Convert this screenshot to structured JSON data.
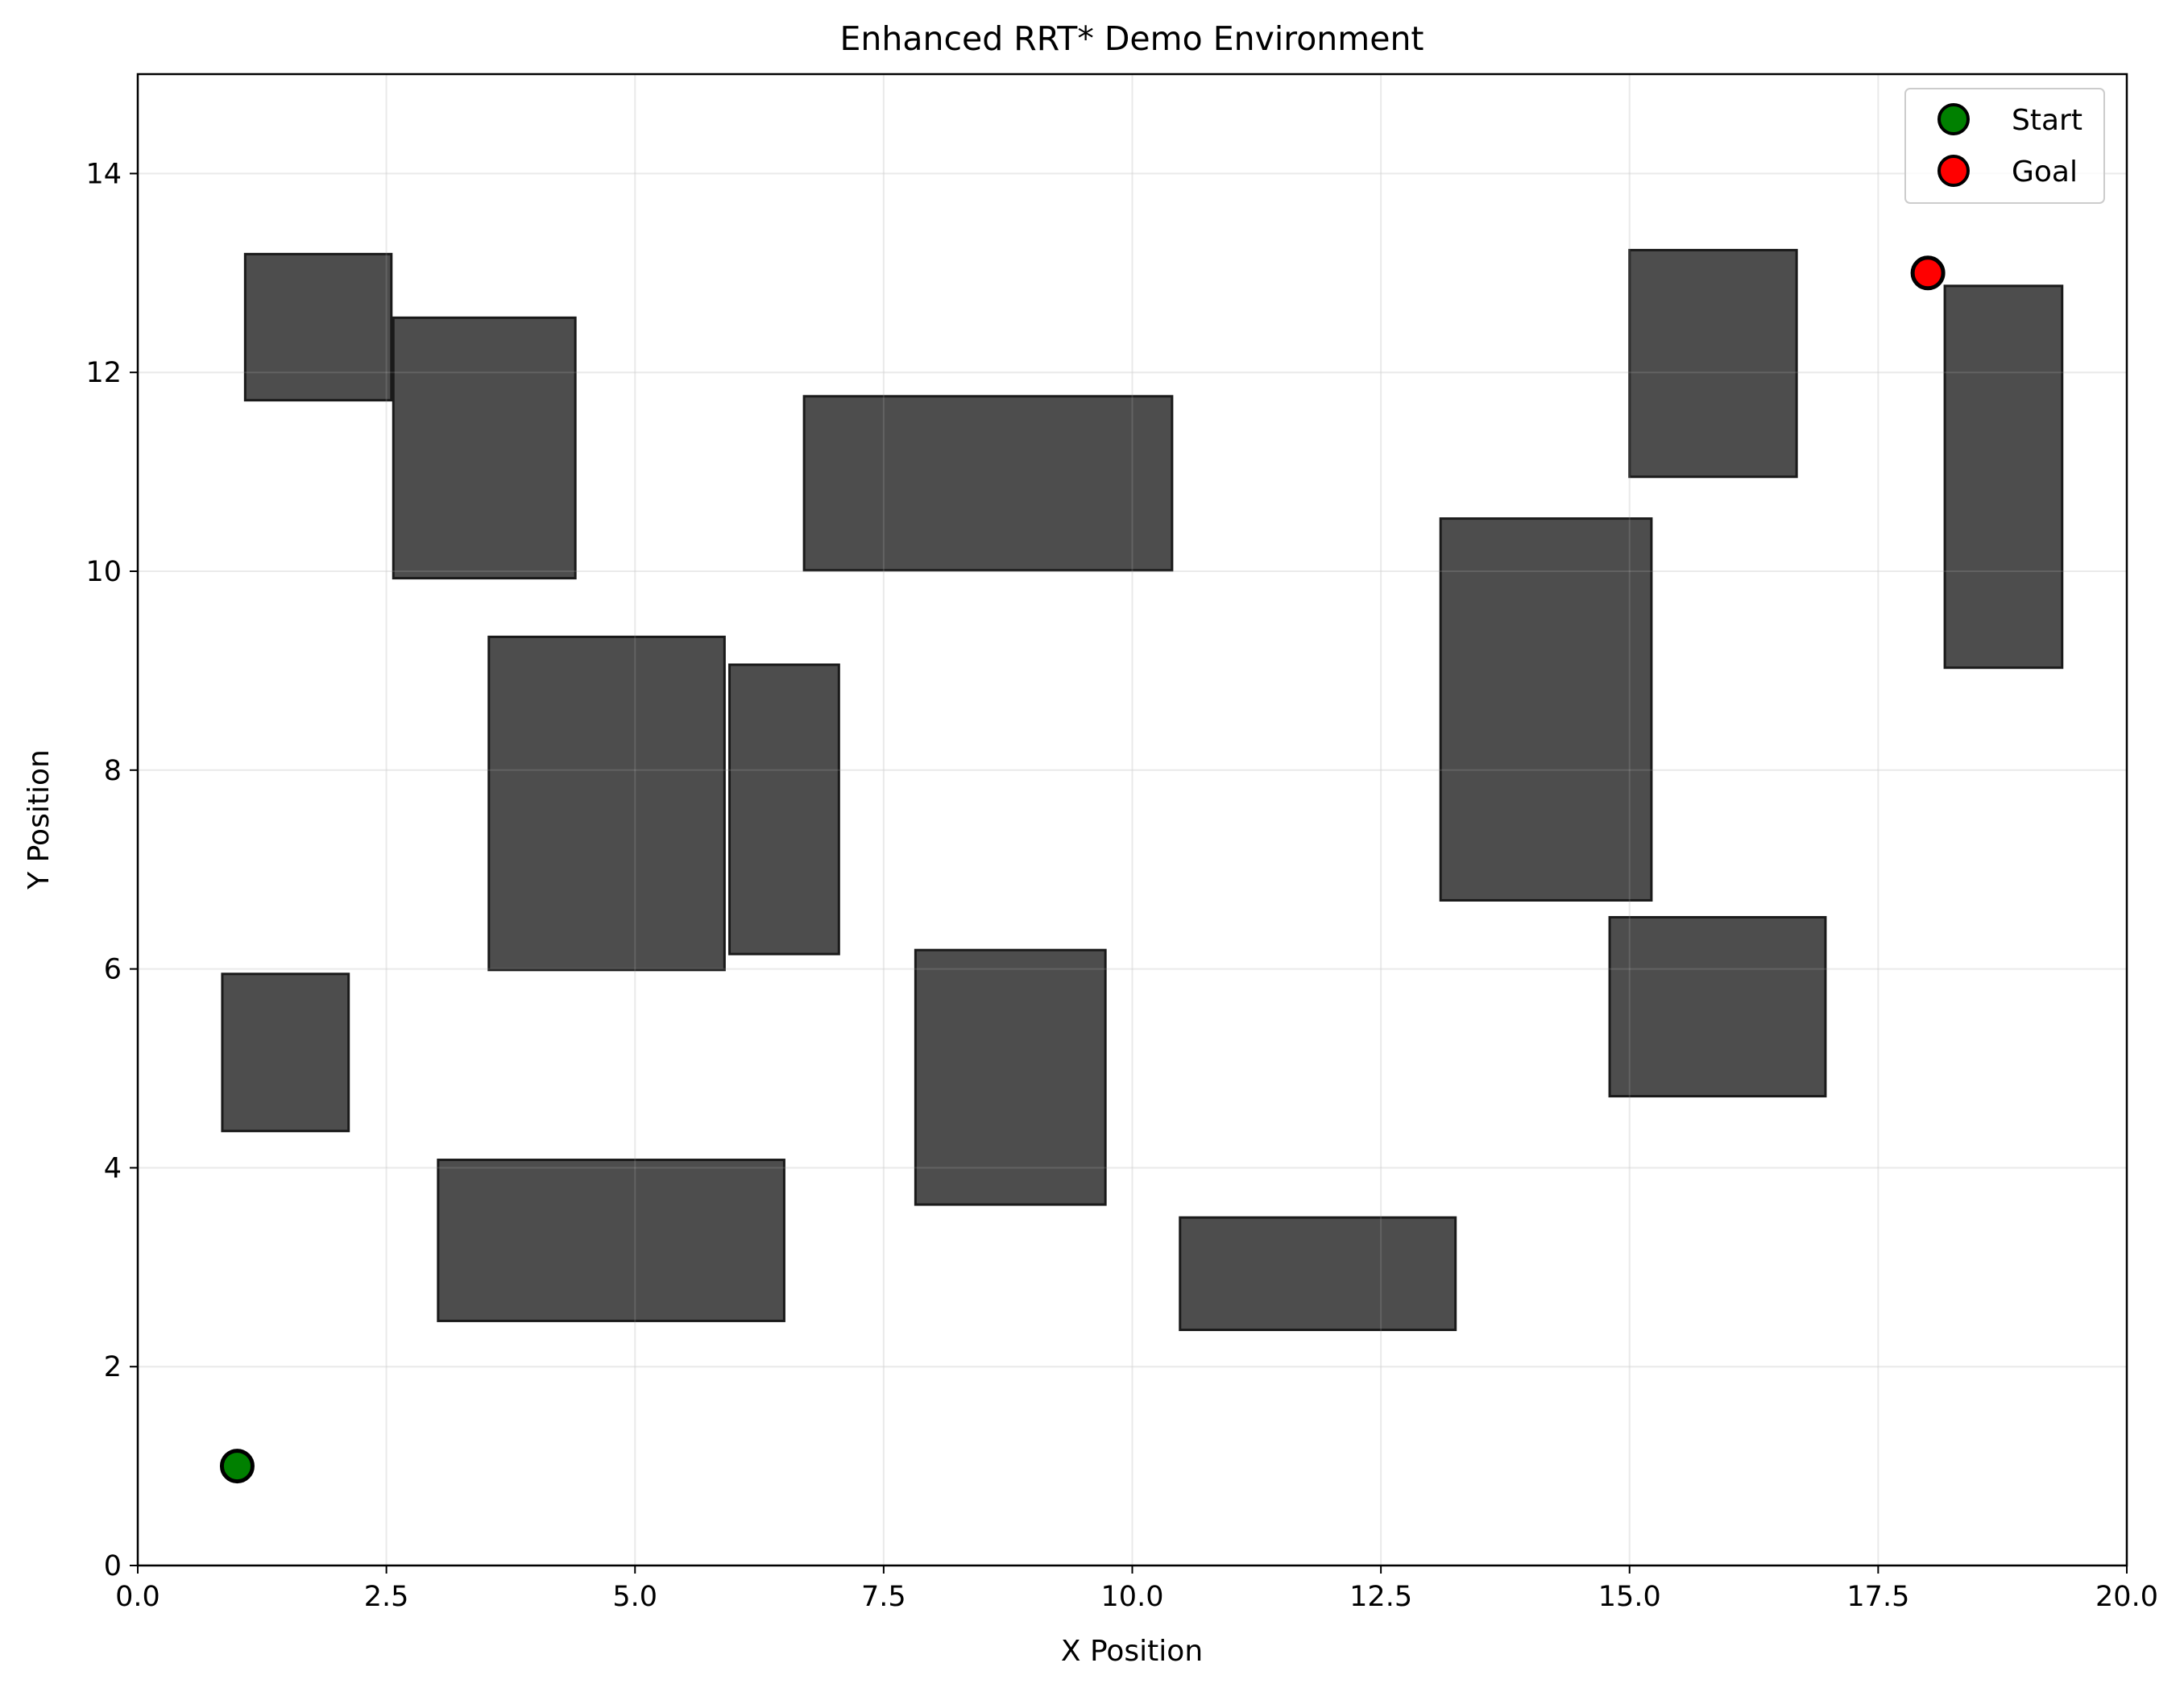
{
  "chart_data": {
    "type": "scatter",
    "title": "Enhanced RRT* Demo Environment",
    "xlabel": "X Position",
    "ylabel": "Y Position",
    "xlim": [
      0,
      20
    ],
    "ylim": [
      0,
      15
    ],
    "x_ticks": [
      0,
      2.5,
      5,
      7.5,
      10,
      12.5,
      15,
      17.5,
      20
    ],
    "x_tick_labels": [
      "0.0",
      "2.5",
      "5.0",
      "7.5",
      "10.0",
      "12.5",
      "15.0",
      "17.5",
      "20.0"
    ],
    "y_ticks": [
      0,
      2,
      4,
      6,
      8,
      10,
      12,
      14
    ],
    "y_tick_labels": [
      "0",
      "2",
      "4",
      "6",
      "8",
      "10",
      "12",
      "14"
    ],
    "grid": true,
    "legend_position": "top-right",
    "obstacle_color": "#4d4d4d",
    "obstacles": [
      {
        "x0": 1.08,
        "y0": 11.72,
        "x1": 2.55,
        "y1": 13.19
      },
      {
        "x0": 2.57,
        "y0": 9.93,
        "x1": 4.4,
        "y1": 12.55
      },
      {
        "x0": 6.7,
        "y0": 10.01,
        "x1": 10.4,
        "y1": 11.76
      },
      {
        "x0": 3.53,
        "y0": 5.99,
        "x1": 5.9,
        "y1": 9.34
      },
      {
        "x0": 5.95,
        "y0": 6.15,
        "x1": 7.05,
        "y1": 9.06
      },
      {
        "x0": 0.85,
        "y0": 4.37,
        "x1": 2.12,
        "y1": 5.95
      },
      {
        "x0": 3.02,
        "y0": 2.46,
        "x1": 6.5,
        "y1": 4.08
      },
      {
        "x0": 7.82,
        "y0": 3.63,
        "x1": 9.73,
        "y1": 6.19
      },
      {
        "x0": 10.48,
        "y0": 2.37,
        "x1": 13.25,
        "y1": 3.5
      },
      {
        "x0": 13.1,
        "y0": 6.69,
        "x1": 15.22,
        "y1": 10.53
      },
      {
        "x0": 15.0,
        "y0": 10.95,
        "x1": 16.68,
        "y1": 13.23
      },
      {
        "x0": 14.8,
        "y0": 4.72,
        "x1": 16.97,
        "y1": 6.52
      },
      {
        "x0": 18.17,
        "y0": 9.03,
        "x1": 19.35,
        "y1": 12.87
      }
    ],
    "series": [
      {
        "name": "Start",
        "x": [
          1
        ],
        "y": [
          1
        ],
        "color": "#008000"
      },
      {
        "name": "Goal",
        "x": [
          18
        ],
        "y": [
          13
        ],
        "color": "#ff0000"
      }
    ]
  }
}
